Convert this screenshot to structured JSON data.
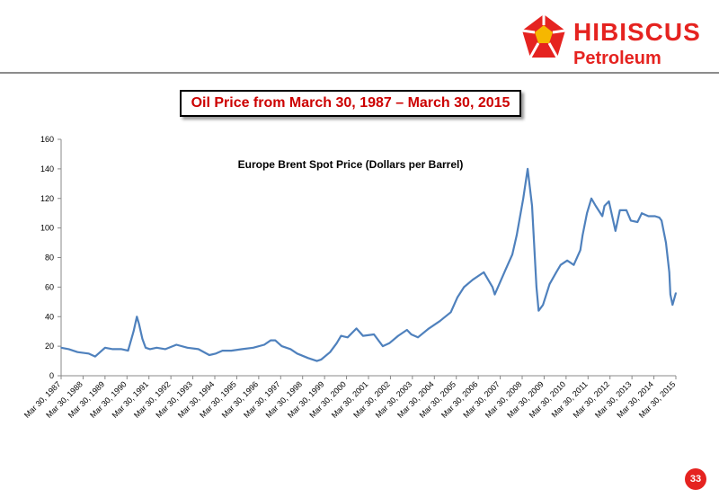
{
  "brand": {
    "line1": "HIBISCUS",
    "line2": "Petroleum",
    "color": "#e52320",
    "accent": "#f6b700"
  },
  "slide": {
    "title": "Oil Price from March 30, 1987 – March 30, 2015",
    "page_number": "33"
  },
  "chart_data": {
    "type": "line",
    "title": "Europe Brent Spot Price (Dollars per Barrel)",
    "xlabel": "",
    "ylabel": "",
    "ylim": [
      0,
      160
    ],
    "yticks": [
      0,
      20,
      40,
      60,
      80,
      100,
      120,
      140,
      160
    ],
    "xtick_labels": [
      "Mar 30, 1987",
      "Mar 30, 1988",
      "Mar 30, 1989",
      "Mar 30, 1990",
      "Mar 30, 1991",
      "Mar 30, 1992",
      "Mar 30, 1993",
      "Mar 30, 1994",
      "Mar 30, 1995",
      "Mar 30, 1996",
      "Mar 30, 1997",
      "Mar 30, 1998",
      "Mar 30, 1999",
      "Mar 30, 2000",
      "Mar 30, 2001",
      "Mar 30, 2002",
      "Mar 30, 2003",
      "Mar 30, 2004",
      "Mar 30, 2005",
      "Mar 30, 2006",
      "Mar 30, 2007",
      "Mar 30, 2008",
      "Mar 30, 2009",
      "Mar 30, 2010",
      "Mar 30, 2011",
      "Mar 30, 2012",
      "Mar 30, 2013",
      "Mar 30, 2014",
      "Mar 30, 2015"
    ],
    "line_color": "#4f81bd",
    "grid": false,
    "series": [
      {
        "name": "",
        "x": [
          1987.25,
          1987.6,
          1988.0,
          1988.5,
          1988.8,
          1989.25,
          1989.6,
          1990.0,
          1990.3,
          1990.55,
          1990.7,
          1990.8,
          1990.95,
          1991.1,
          1991.3,
          1991.6,
          1992.0,
          1992.5,
          1993.0,
          1993.5,
          1994.0,
          1994.3,
          1994.6,
          1995.0,
          1995.5,
          1996.0,
          1996.5,
          1996.8,
          1997.0,
          1997.3,
          1997.7,
          1998.0,
          1998.5,
          1998.9,
          1999.1,
          1999.5,
          1999.8,
          2000.0,
          2000.3,
          2000.7,
          2001.0,
          2001.5,
          2001.9,
          2002.2,
          2002.6,
          2003.0,
          2003.2,
          2003.5,
          2004.0,
          2004.5,
          2005.0,
          2005.3,
          2005.6,
          2006.0,
          2006.5,
          2006.9,
          2007.0,
          2007.5,
          2007.8,
          2008.0,
          2008.3,
          2008.5,
          2008.7,
          2008.9,
          2009.0,
          2009.2,
          2009.5,
          2009.8,
          2010.0,
          2010.3,
          2010.6,
          2010.9,
          2011.0,
          2011.2,
          2011.4,
          2011.6,
          2011.9,
          2012.0,
          2012.2,
          2012.5,
          2012.7,
          2013.0,
          2013.2,
          2013.5,
          2013.7,
          2014.0,
          2014.3,
          2014.5,
          2014.6,
          2014.8,
          2014.95,
          2015.0,
          2015.1,
          2015.25
        ],
        "values": [
          19,
          18,
          16,
          15,
          13,
          19,
          18,
          18,
          17,
          30,
          40,
          35,
          25,
          19,
          18,
          19,
          18,
          21,
          19,
          18,
          14,
          15,
          17,
          17,
          18,
          19,
          21,
          24,
          24,
          20,
          18,
          15,
          12,
          10,
          11,
          16,
          22,
          27,
          26,
          32,
          27,
          28,
          20,
          22,
          27,
          31,
          28,
          26,
          32,
          37,
          43,
          53,
          60,
          65,
          70,
          60,
          55,
          72,
          82,
          95,
          120,
          140,
          115,
          60,
          44,
          48,
          62,
          70,
          75,
          78,
          75,
          85,
          95,
          110,
          120,
          115,
          108,
          115,
          118,
          98,
          112,
          112,
          105,
          104,
          110,
          108,
          108,
          107,
          105,
          90,
          70,
          55,
          48,
          56
        ]
      }
    ]
  }
}
